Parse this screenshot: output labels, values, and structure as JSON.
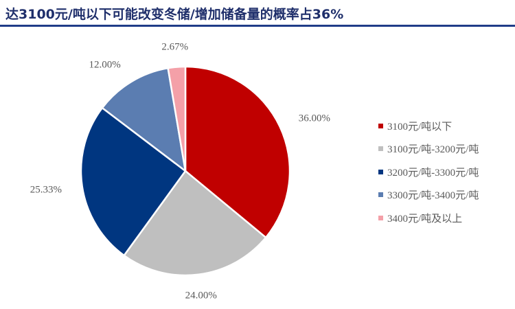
{
  "title": "达3100元/吨以下可能改变冬储/增加储备量的概率占36%",
  "chart_data": {
    "type": "pie",
    "categories": [
      "3100元/吨以下",
      "3100元/吨-3200元/吨",
      "3200元/吨-3300元/吨",
      "3300元/吨-3400元/吨",
      "3400元/吨及以上"
    ],
    "values": [
      36.0,
      24.0,
      25.33,
      12.0,
      2.67
    ],
    "labels": [
      "36.00%",
      "24.00%",
      "25.33%",
      "12.00%",
      "2.67%"
    ],
    "colors": [
      "#C00000",
      "#BFBFBF",
      "#003680",
      "#5B7DB1",
      "#F4A0A8"
    ],
    "legend_position": "right"
  }
}
